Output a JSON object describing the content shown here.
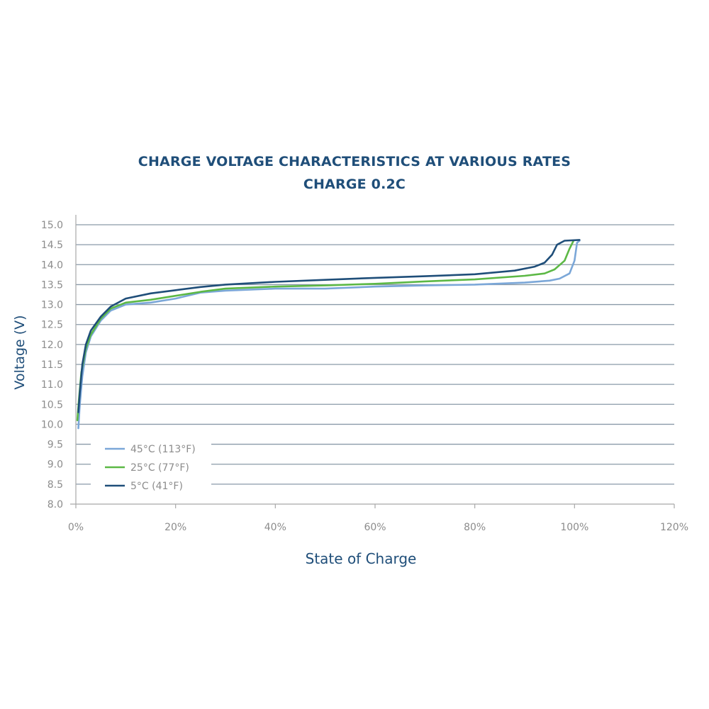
{
  "chart_data": {
    "type": "line",
    "title": "CHARGE VOLTAGE CHARACTERISTICS AT VARIOUS RATES",
    "subtitle": "CHARGE 0.2C",
    "xlabel": "State of Charge",
    "ylabel": "Voltage (V)",
    "xlim": [
      0,
      120
    ],
    "ylim": [
      8.0,
      15.0
    ],
    "x_ticks": [
      "0%",
      "20%",
      "40%",
      "60%",
      "80%",
      "100%",
      "120%"
    ],
    "y_ticks": [
      "8.0",
      "8.5",
      "9.0",
      "9.5",
      "10.0",
      "10.5",
      "11.0",
      "11.5",
      "12.0",
      "12.5",
      "13.0",
      "13.5",
      "14.0",
      "14.5",
      "15.0"
    ],
    "grid": true,
    "legend_position": "bottom-left",
    "series": [
      {
        "name": "45°C (113°F)",
        "color": "#7ba7d8",
        "points": [
          [
            0.5,
            9.9
          ],
          [
            0.8,
            10.5
          ],
          [
            1.3,
            11.2
          ],
          [
            2,
            11.8
          ],
          [
            3,
            12.2
          ],
          [
            5,
            12.6
          ],
          [
            7,
            12.85
          ],
          [
            10,
            13.0
          ],
          [
            15,
            13.05
          ],
          [
            20,
            13.15
          ],
          [
            25,
            13.3
          ],
          [
            30,
            13.35
          ],
          [
            40,
            13.4
          ],
          [
            50,
            13.4
          ],
          [
            60,
            13.45
          ],
          [
            70,
            13.48
          ],
          [
            80,
            13.5
          ],
          [
            90,
            13.55
          ],
          [
            95,
            13.6
          ],
          [
            97,
            13.65
          ],
          [
            99,
            13.78
          ],
          [
            100,
            14.1
          ],
          [
            100.5,
            14.55
          ],
          [
            101,
            14.6
          ]
        ]
      },
      {
        "name": "25°C (77°F)",
        "color": "#5cb845",
        "points": [
          [
            0.3,
            10.1
          ],
          [
            0.6,
            10.6
          ],
          [
            1.1,
            11.3
          ],
          [
            2,
            11.9
          ],
          [
            3,
            12.25
          ],
          [
            5,
            12.65
          ],
          [
            7,
            12.9
          ],
          [
            10,
            13.05
          ],
          [
            15,
            13.12
          ],
          [
            20,
            13.22
          ],
          [
            25,
            13.32
          ],
          [
            30,
            13.4
          ],
          [
            40,
            13.45
          ],
          [
            50,
            13.48
          ],
          [
            60,
            13.52
          ],
          [
            70,
            13.58
          ],
          [
            80,
            13.63
          ],
          [
            90,
            13.72
          ],
          [
            94,
            13.78
          ],
          [
            96,
            13.88
          ],
          [
            98,
            14.1
          ],
          [
            99,
            14.4
          ],
          [
            99.8,
            14.6
          ]
        ]
      },
      {
        "name": "5°C (41°F)",
        "color": "#1f4e79",
        "points": [
          [
            0.5,
            10.3
          ],
          [
            0.8,
            10.8
          ],
          [
            1.3,
            11.5
          ],
          [
            2,
            12.0
          ],
          [
            3,
            12.35
          ],
          [
            5,
            12.7
          ],
          [
            7,
            12.95
          ],
          [
            10,
            13.15
          ],
          [
            15,
            13.28
          ],
          [
            20,
            13.36
          ],
          [
            25,
            13.44
          ],
          [
            30,
            13.5
          ],
          [
            40,
            13.57
          ],
          [
            50,
            13.62
          ],
          [
            60,
            13.67
          ],
          [
            70,
            13.71
          ],
          [
            80,
            13.76
          ],
          [
            88,
            13.85
          ],
          [
            92,
            13.95
          ],
          [
            94,
            14.05
          ],
          [
            95.5,
            14.25
          ],
          [
            96.5,
            14.5
          ],
          [
            98,
            14.6
          ],
          [
            101,
            14.62
          ]
        ]
      }
    ]
  }
}
